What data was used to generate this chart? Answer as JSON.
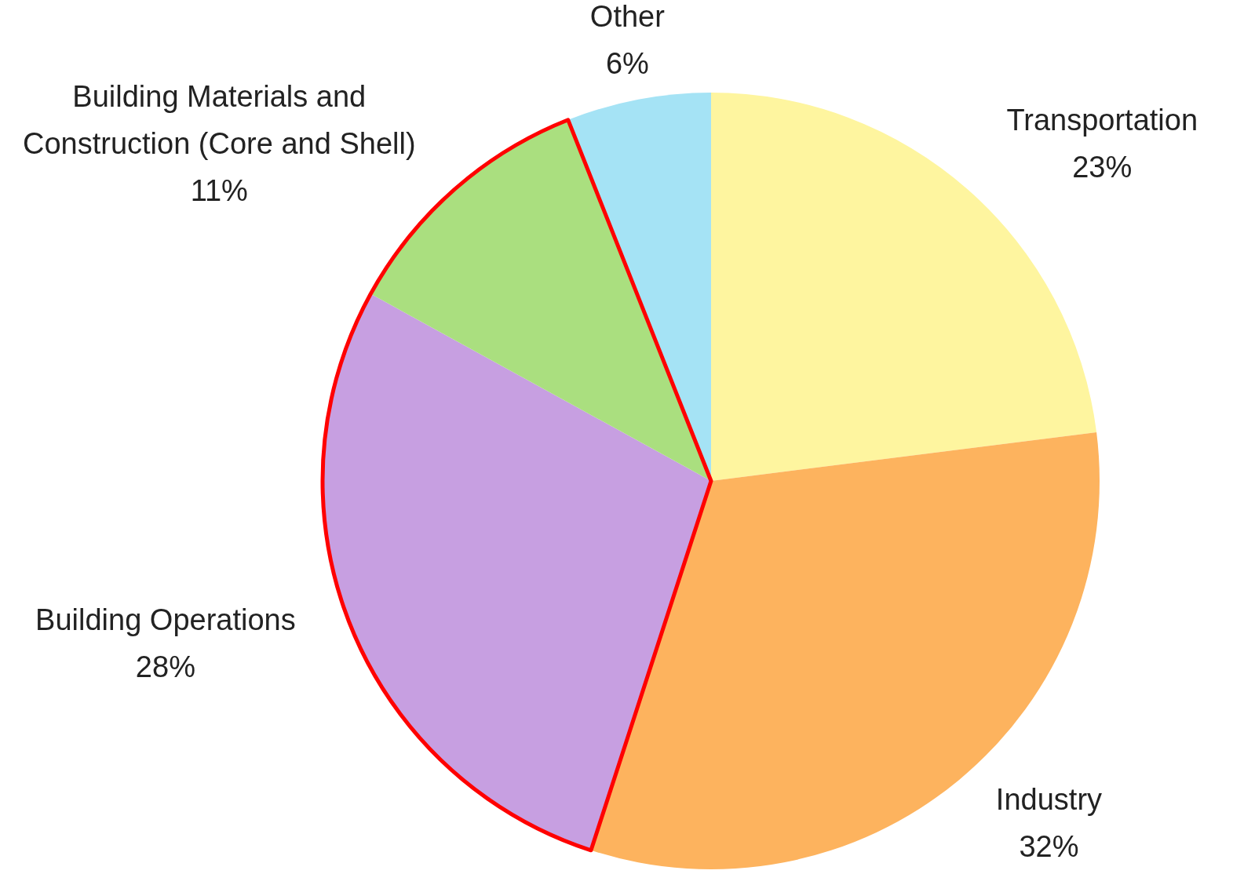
{
  "chart_data": {
    "type": "pie",
    "categories": [
      "Transportation",
      "Industry",
      "Building Operations",
      "Building Materials and Construction (Core and Shell)",
      "Other"
    ],
    "values": [
      23,
      32,
      28,
      11,
      6
    ],
    "value_labels": [
      "23%",
      "32%",
      "28%",
      "11%",
      "6%"
    ],
    "colors": [
      "#fef59f",
      "#fdb35e",
      "#c79fe1",
      "#aadf7f",
      "#a5e3f5"
    ],
    "legend": false
  }
}
